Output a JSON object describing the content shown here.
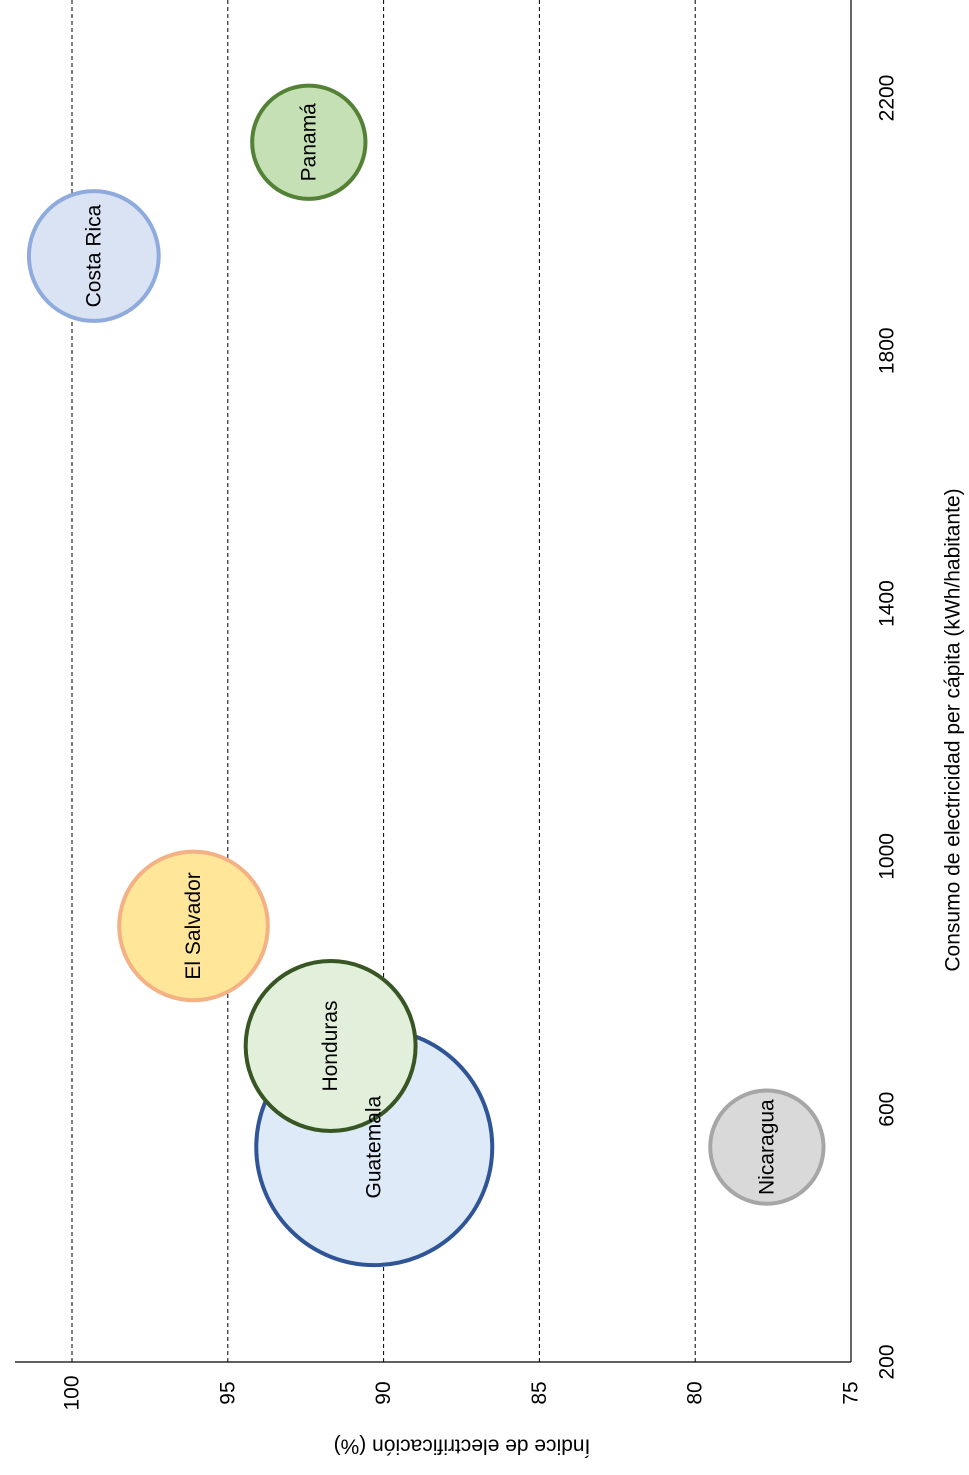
{
  "chart_data": {
    "type": "bubble",
    "xlabel": "Consumo de electricidad per cápita (kWh/habitante)",
    "ylabel": "Índice de electrificación (%)",
    "xlim": [
      200,
      2400
    ],
    "ylim": [
      75,
      100
    ],
    "xticks": [
      200,
      600,
      1000,
      1400,
      1800,
      2200
    ],
    "yticks": [
      75,
      80,
      85,
      90,
      95,
      100
    ],
    "grid": "y-dashed",
    "series": [
      {
        "name": "Guatemala",
        "x": 540,
        "y": 90.3,
        "radius_mwh_scale": 1.0,
        "fill": "#deeaf7",
        "stroke": "#2f5597"
      },
      {
        "name": "Honduras",
        "x": 700,
        "y": 91.7,
        "radius_mwh_scale": 0.72,
        "fill": "#e2efda",
        "stroke": "#375623"
      },
      {
        "name": "El Salvador",
        "x": 890,
        "y": 96.1,
        "radius_mwh_scale": 0.63,
        "fill": "#ffe699",
        "stroke": "#f4b183"
      },
      {
        "name": "Nicaragua",
        "x": 540,
        "y": 77.7,
        "radius_mwh_scale": 0.48,
        "fill": "#d9d9d9",
        "stroke": "#a6a6a6"
      },
      {
        "name": "Costa Rica",
        "x": 1950,
        "y": 99.3,
        "radius_mwh_scale": 0.55,
        "fill": "#dae3f3",
        "stroke": "#8faadc"
      },
      {
        "name": "Panamá",
        "x": 2130,
        "y": 92.4,
        "radius_mwh_scale": 0.48,
        "fill": "#c5e0b4",
        "stroke": "#538135"
      }
    ]
  }
}
